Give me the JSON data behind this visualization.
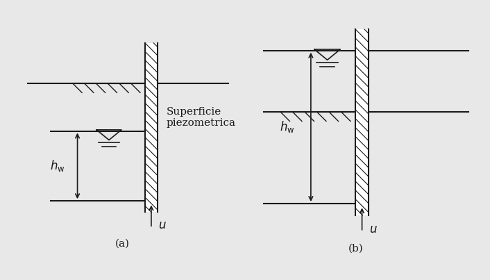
{
  "bg_color": "#e8e8e8",
  "line_color": "#1a1a1a",
  "label_a": "(a)",
  "label_b": "(b)",
  "text_superficie": "Superficie\npiezometrica",
  "font_size_label": 11,
  "font_size_text": 11,
  "font_size_hw": 12
}
